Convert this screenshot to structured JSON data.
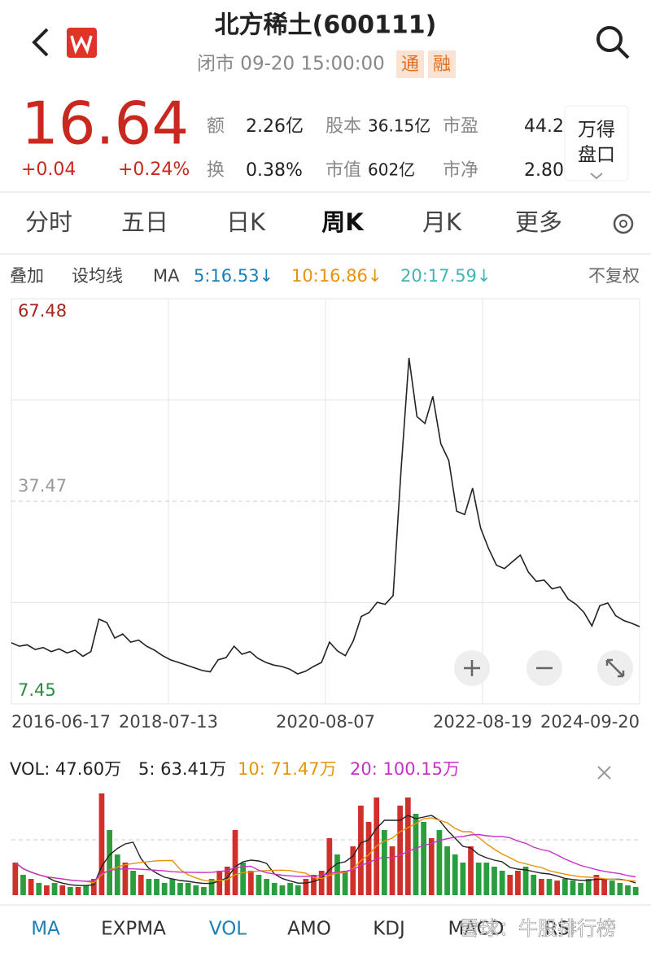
{
  "header": {
    "title": "北方稀土(600111)",
    "status": "闭市 09-20 15:00:00",
    "tags": [
      "通",
      "融"
    ]
  },
  "quote": {
    "price": "16.64",
    "change": "+0.04",
    "change_pct": "+0.24%",
    "stats": [
      {
        "label": "额",
        "value": "2.26亿"
      },
      {
        "label": "换",
        "value": "0.38%"
      },
      {
        "label": "股本",
        "value": "36.15亿"
      },
      {
        "label": "市值",
        "value": "602亿"
      },
      {
        "label": "市盈",
        "value": "44.2"
      },
      {
        "label": "市净",
        "value": "2.80"
      }
    ],
    "panel_button": [
      "万得",
      "盘口"
    ]
  },
  "period_tabs": {
    "items": [
      "分时",
      "五日",
      "日K",
      "周K",
      "月K",
      "更多"
    ],
    "active": 3
  },
  "ma_bar": {
    "left": [
      "叠加",
      "设均线",
      "MA"
    ],
    "items": [
      {
        "label": "5:16.53↓",
        "color": "#1d7fb8"
      },
      {
        "label": "10:16.86↓",
        "color": "#e8920c"
      },
      {
        "label": "20:17.59↓",
        "color": "#3fb6b0"
      }
    ],
    "right": "不复权"
  },
  "chart_data": [
    {
      "type": "line",
      "color": "#222222",
      "values": [
        16.5,
        16.0,
        16.2,
        15.5,
        15.8,
        15.2,
        15.6,
        15.0,
        15.4,
        14.5,
        15.2,
        20.0,
        19.5,
        17.2,
        17.8,
        16.6,
        16.9,
        16.0,
        15.4,
        14.6,
        14.0,
        13.6,
        13.2,
        12.8,
        12.4,
        12.2,
        14.0,
        14.3,
        16.0,
        14.8,
        15.2,
        14.2,
        13.6,
        13.2,
        13.0,
        12.6,
        11.9,
        12.3,
        13.0,
        13.6,
        16.6,
        15.3,
        14.6,
        16.8,
        20.4,
        21.0,
        22.5,
        22.2,
        23.5,
        42.0,
        58.7,
        50.0,
        49.0,
        53.0,
        46.0,
        43.5,
        36.0,
        35.5,
        39.4,
        33.5,
        30.5,
        28.0,
        27.5,
        28.5,
        29.5,
        27.0,
        25.6,
        25.8,
        24.5,
        24.8,
        23.0,
        22.2,
        21.0,
        19.0,
        22.0,
        22.4,
        20.5,
        19.8,
        19.4,
        18.9
      ],
      "ylim": [
        7.45,
        67.48
      ],
      "yticks": [
        7.45,
        37.47,
        67.48
      ],
      "x_labels": [
        "2016-06-17",
        "2018-07-13",
        "2020-08-07",
        "2022-08-19",
        "2024-09-20"
      ]
    },
    {
      "type": "bar",
      "legend": [
        {
          "text": "VOL: 47.60万",
          "color": "#222222"
        },
        {
          "text": "5: 63.41万",
          "color": "#222222"
        },
        {
          "text": "10: 71.47万",
          "color": "#e8920c"
        },
        {
          "text": "20: 100.15万",
          "color": "#c532c5"
        }
      ],
      "values": [
        192,
        120,
        96,
        72,
        58,
        72,
        58,
        48,
        48,
        58,
        96,
        600,
        384,
        240,
        192,
        144,
        120,
        96,
        96,
        72,
        96,
        72,
        72,
        58,
        48,
        96,
        144,
        168,
        384,
        192,
        144,
        120,
        96,
        72,
        58,
        72,
        58,
        96,
        120,
        144,
        336,
        240,
        144,
        288,
        528,
        432,
        576,
        384,
        288,
        528,
        576,
        480,
        432,
        336,
        384,
        288,
        240,
        192,
        288,
        192,
        192,
        168,
        144,
        120,
        144,
        168,
        120,
        96,
        96,
        86,
        96,
        86,
        72,
        96,
        120,
        96,
        86,
        72,
        58,
        48
      ],
      "ylim": [
        0,
        624
      ],
      "up_color": "#d0302a",
      "down_color": "#2a9d3e"
    }
  ],
  "indicator_tabs": {
    "items": [
      "MA",
      "EXPMA",
      "VOL",
      "AMO",
      "KDJ",
      "MACD",
      "RSI"
    ],
    "active": [
      0,
      2
    ]
  },
  "watermark": "雪球：牛股排行榜"
}
